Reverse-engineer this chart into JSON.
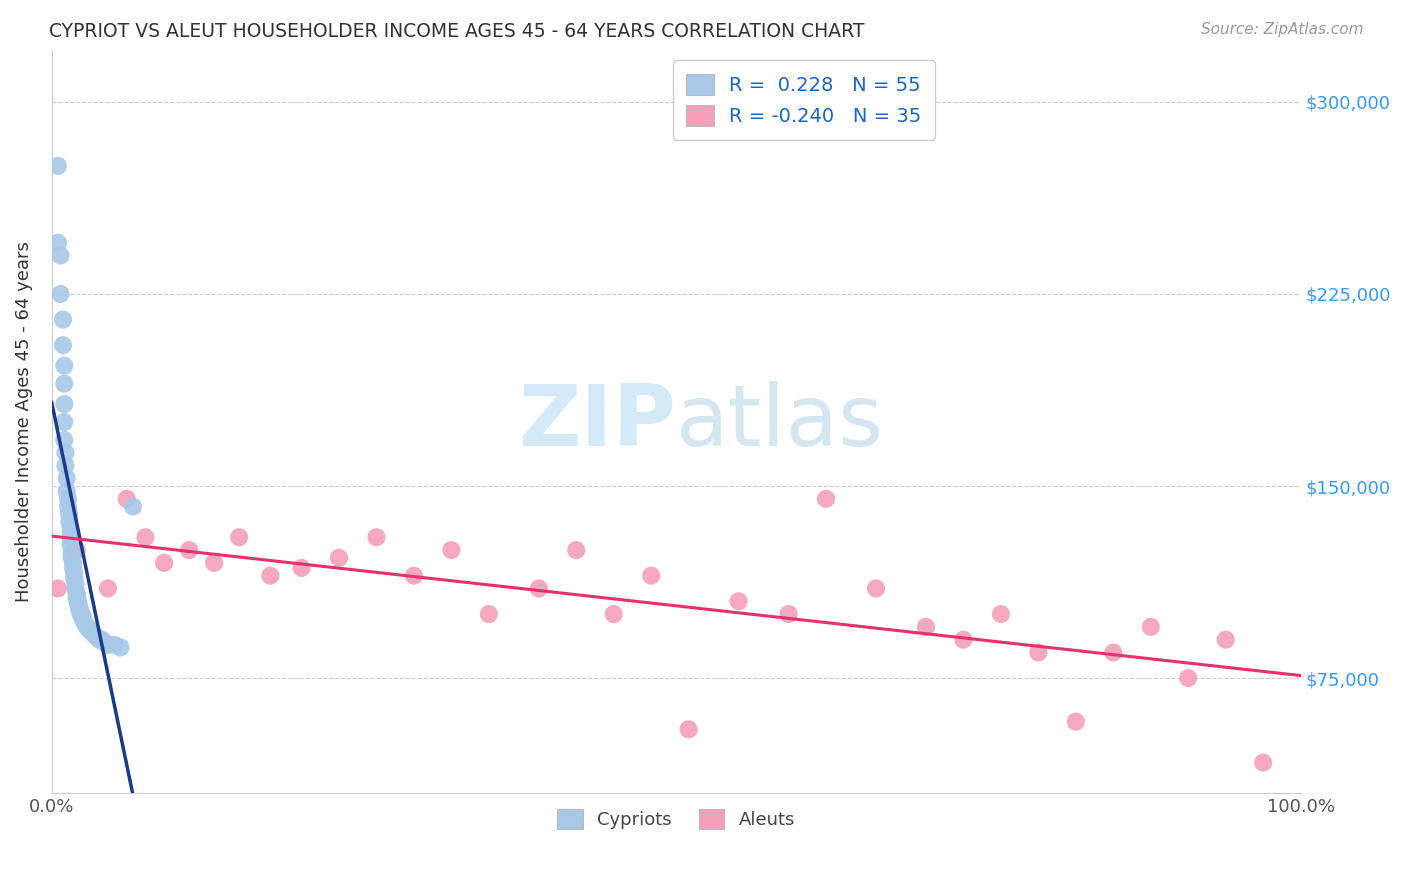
{
  "title": "CYPRIOT VS ALEUT HOUSEHOLDER INCOME AGES 45 - 64 YEARS CORRELATION CHART",
  "source": "Source: ZipAtlas.com",
  "ylabel": "Householder Income Ages 45 - 64 years",
  "xlim": [
    0.0,
    1.0
  ],
  "ylim": [
    30000,
    320000
  ],
  "yticks": [
    75000,
    150000,
    225000,
    300000
  ],
  "ytick_labels": [
    "$75,000",
    "$150,000",
    "$225,000",
    "$300,000"
  ],
  "xtick_labels": [
    "0.0%",
    "100.0%"
  ],
  "cypriot_color": "#a8c8e8",
  "aleut_color": "#f4a0b8",
  "cypriot_line_color": "#1a3a8a",
  "aleut_line_color": "#e83070",
  "trend_dashed_color": "#88b8e0",
  "watermark_color": "#d0e8f8",
  "cypriot_x": [
    0.005,
    0.005,
    0.007,
    0.007,
    0.009,
    0.009,
    0.01,
    0.01,
    0.01,
    0.01,
    0.01,
    0.011,
    0.011,
    0.012,
    0.012,
    0.013,
    0.013,
    0.014,
    0.014,
    0.015,
    0.015,
    0.015,
    0.016,
    0.016,
    0.017,
    0.017,
    0.018,
    0.018,
    0.019,
    0.019,
    0.02,
    0.02,
    0.02,
    0.021,
    0.021,
    0.022,
    0.022,
    0.023,
    0.023,
    0.025,
    0.025,
    0.026,
    0.027,
    0.028,
    0.03,
    0.032,
    0.034,
    0.036,
    0.038,
    0.04,
    0.042,
    0.045,
    0.05,
    0.055,
    0.065
  ],
  "cypriot_y": [
    275000,
    245000,
    240000,
    225000,
    215000,
    205000,
    197000,
    190000,
    182000,
    175000,
    168000,
    163000,
    158000,
    153000,
    148000,
    145000,
    142000,
    139000,
    136000,
    133000,
    130000,
    127000,
    124000,
    122000,
    120000,
    118000,
    116000,
    114000,
    112000,
    110000,
    108000,
    107000,
    106000,
    105000,
    104000,
    103000,
    102000,
    101000,
    100000,
    99000,
    98000,
    97000,
    96000,
    95000,
    94000,
    93000,
    92000,
    91000,
    90000,
    90000,
    89000,
    88000,
    88000,
    87000,
    142000
  ],
  "aleut_x": [
    0.005,
    0.02,
    0.045,
    0.06,
    0.075,
    0.09,
    0.11,
    0.13,
    0.15,
    0.175,
    0.2,
    0.23,
    0.26,
    0.29,
    0.32,
    0.35,
    0.39,
    0.42,
    0.45,
    0.48,
    0.51,
    0.55,
    0.59,
    0.62,
    0.66,
    0.7,
    0.73,
    0.76,
    0.79,
    0.82,
    0.85,
    0.88,
    0.91,
    0.94,
    0.97
  ],
  "aleut_y": [
    110000,
    125000,
    110000,
    145000,
    130000,
    120000,
    125000,
    120000,
    130000,
    115000,
    118000,
    122000,
    130000,
    115000,
    125000,
    100000,
    110000,
    125000,
    100000,
    115000,
    55000,
    105000,
    100000,
    145000,
    110000,
    95000,
    90000,
    100000,
    85000,
    58000,
    85000,
    95000,
    75000,
    90000,
    42000
  ]
}
